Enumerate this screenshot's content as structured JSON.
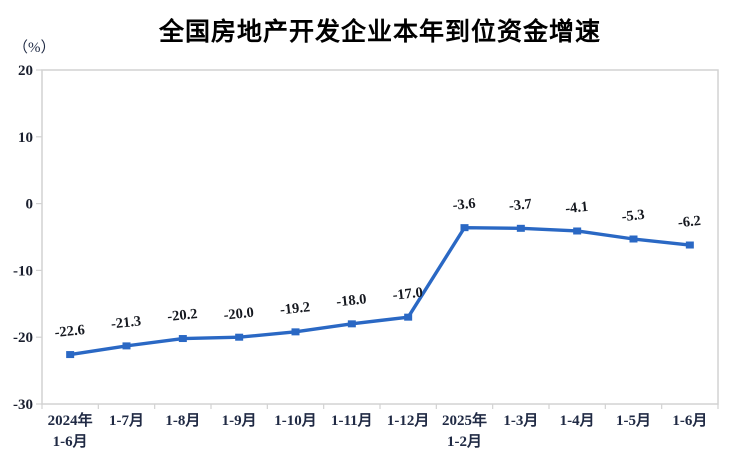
{
  "chart_data": {
    "type": "line",
    "title": "全国房地产开发企业本年到位资金增速",
    "y_axis_unit": "（%）",
    "categories": [
      "2024年\n1-6月",
      "1-7月",
      "1-8月",
      "1-9月",
      "1-10月",
      "1-11月",
      "1-12月",
      "2025年\n1-2月",
      "1-3月",
      "1-4月",
      "1-5月",
      "1-6月"
    ],
    "values": [
      -22.6,
      -21.3,
      -20.2,
      -20.0,
      -19.2,
      -18.0,
      -17.0,
      -3.6,
      -3.7,
      -4.1,
      -5.3,
      -6.2
    ],
    "data_labels": [
      "-22.6",
      "-21.3",
      "-20.2",
      "-20.0",
      "-19.2",
      "-18.0",
      "-17.0",
      "-3.6",
      "-3.7",
      "-4.1",
      "-5.3",
      "-6.2"
    ],
    "ylim": [
      -30,
      20
    ],
    "yticks": [
      20,
      10,
      0,
      -10,
      -20,
      -30
    ],
    "grid": false,
    "legend": "none",
    "marker": "square",
    "line_color": "#2a68c4",
    "axis_color": "#d2d2d2",
    "background_color": "#ffffff"
  }
}
